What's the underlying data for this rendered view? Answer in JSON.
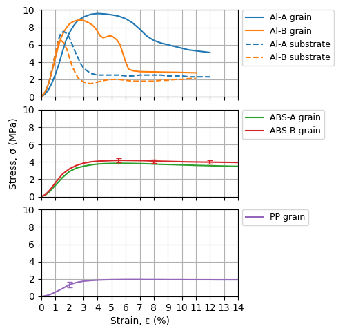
{
  "chart_data": [
    {
      "type": "line",
      "series": [
        {
          "name": "Al-A grain",
          "color": "#1f77b4",
          "line_style": "solid",
          "x": [
            0,
            0.25,
            0.5,
            0.75,
            1.0,
            1.25,
            1.5,
            1.75,
            2.0,
            2.3,
            2.6,
            3.0,
            3.5,
            4.0,
            4.5,
            5.0,
            5.5,
            6.0,
            6.5,
            7.0,
            7.5,
            8.0,
            8.5,
            9.0,
            9.5,
            10.0,
            10.5,
            11.0,
            11.5,
            12.0
          ],
          "values": [
            0,
            0.3,
            0.8,
            1.6,
            2.6,
            3.8,
            5.2,
            6.5,
            7.4,
            8.2,
            8.8,
            9.2,
            9.5,
            9.6,
            9.55,
            9.45,
            9.3,
            9.0,
            8.5,
            7.8,
            7.0,
            6.5,
            6.2,
            6.0,
            5.8,
            5.6,
            5.4,
            5.3,
            5.2,
            5.1
          ]
        },
        {
          "name": "Al-B grain",
          "color": "#ff7f0e",
          "line_style": "solid",
          "x": [
            0,
            0.2,
            0.4,
            0.6,
            0.8,
            1.0,
            1.2,
            1.4,
            1.6,
            1.8,
            2.0,
            2.2,
            2.4,
            2.6,
            2.8,
            3.0,
            3.2,
            3.4,
            3.6,
            3.8,
            4.0,
            4.2,
            4.4,
            4.6,
            4.8,
            5.0,
            5.2,
            5.4,
            5.6,
            5.8,
            6.0,
            6.1,
            6.2,
            6.5,
            7.0,
            7.5,
            8.0,
            8.5,
            9.0,
            9.5,
            10.0,
            10.5,
            11.0
          ],
          "values": [
            0,
            0.4,
            1.0,
            2.0,
            3.2,
            4.5,
            5.8,
            6.8,
            7.5,
            8.0,
            8.4,
            8.6,
            8.75,
            8.82,
            8.85,
            8.8,
            8.65,
            8.5,
            8.3,
            8.0,
            7.5,
            7.0,
            6.8,
            6.9,
            7.0,
            7.0,
            6.8,
            6.5,
            6.0,
            5.0,
            4.0,
            3.6,
            3.2,
            3.0,
            2.9,
            2.88,
            2.87,
            2.85,
            2.83,
            2.82,
            2.8,
            2.78,
            2.76
          ]
        },
        {
          "name": "Al-A substrate",
          "color": "#1f77b4",
          "line_style": "dashed",
          "x": [
            0,
            0.2,
            0.4,
            0.6,
            0.8,
            1.0,
            1.2,
            1.4,
            1.6,
            1.8,
            2.0,
            2.2,
            2.4,
            2.6,
            2.8,
            3.0,
            3.5,
            4.0,
            4.5,
            5.0,
            5.5,
            6.0,
            6.5,
            7.0,
            7.5,
            8.0,
            8.5,
            9.0,
            9.5,
            10.0,
            10.5,
            11.0,
            11.5,
            12.0
          ],
          "values": [
            0,
            0.4,
            1.0,
            2.0,
            3.5,
            5.0,
            6.5,
            7.4,
            7.5,
            7.3,
            6.8,
            6.0,
            5.2,
            4.5,
            3.8,
            3.3,
            2.7,
            2.5,
            2.5,
            2.5,
            2.5,
            2.4,
            2.4,
            2.5,
            2.5,
            2.5,
            2.5,
            2.4,
            2.4,
            2.4,
            2.3,
            2.3,
            2.3,
            2.3
          ]
        },
        {
          "name": "Al-B substrate",
          "color": "#ff7f0e",
          "line_style": "dashed",
          "x": [
            0,
            0.2,
            0.4,
            0.6,
            0.8,
            1.0,
            1.2,
            1.4,
            1.6,
            1.8,
            2.0,
            2.2,
            2.4,
            2.6,
            2.8,
            3.0,
            3.5,
            4.0,
            4.5,
            5.0,
            5.5,
            6.0,
            6.5,
            7.0,
            7.5,
            8.0,
            8.5,
            9.0,
            9.5,
            10.0,
            10.5,
            11.0
          ],
          "values": [
            0,
            0.4,
            1.0,
            2.0,
            3.5,
            5.0,
            6.3,
            6.5,
            6.2,
            5.5,
            4.5,
            3.5,
            2.8,
            2.2,
            1.9,
            1.7,
            1.5,
            1.7,
            1.9,
            2.0,
            2.0,
            1.9,
            1.8,
            1.8,
            1.8,
            1.8,
            1.9,
            1.9,
            2.0,
            2.0,
            2.1,
            2.1
          ]
        }
      ],
      "xlim": [
        0,
        14
      ],
      "ylim": [
        0,
        10
      ],
      "xticks": [
        0,
        1,
        2,
        3,
        4,
        5,
        6,
        7,
        8,
        9,
        10,
        11,
        12,
        13,
        14
      ],
      "yticks": [
        0,
        2,
        4,
        6,
        8,
        10
      ],
      "grid": true,
      "legend": "right",
      "tick_labels": "y"
    },
    {
      "type": "line",
      "ylabel": "Stress, σ (MPa)",
      "series": [
        {
          "name": "ABS-A grain",
          "color": "#2ca02c",
          "line_style": "solid",
          "x": [
            0,
            0.3,
            0.6,
            1.0,
            1.5,
            2.0,
            2.5,
            3.0,
            3.5,
            4.0,
            4.5,
            5.0,
            5.5,
            6.0,
            6.5,
            7.0,
            7.5,
            8.0,
            8.5,
            9.0,
            9.5,
            10.0,
            10.5,
            11.0,
            11.5,
            12.0,
            12.5,
            13.0,
            13.5,
            14.0
          ],
          "values": [
            0,
            0.2,
            0.6,
            1.3,
            2.2,
            2.9,
            3.3,
            3.5,
            3.65,
            3.75,
            3.8,
            3.82,
            3.83,
            3.83,
            3.82,
            3.8,
            3.78,
            3.75,
            3.72,
            3.7,
            3.68,
            3.65,
            3.63,
            3.6,
            3.58,
            3.56,
            3.54,
            3.52,
            3.5,
            3.49
          ]
        },
        {
          "name": "ABS-B grain",
          "color": "#d62728",
          "line_style": "solid",
          "x": [
            0,
            0.3,
            0.6,
            1.0,
            1.5,
            2.0,
            2.5,
            3.0,
            3.5,
            4.0,
            4.5,
            5.0,
            5.5,
            6.0,
            6.5,
            7.0,
            7.5,
            8.0,
            8.5,
            9.0,
            9.5,
            10.0,
            10.5,
            11.0,
            11.5,
            12.0,
            12.5,
            13.0,
            13.5,
            14.0
          ],
          "values": [
            0,
            0.25,
            0.75,
            1.6,
            2.6,
            3.2,
            3.6,
            3.85,
            4.0,
            4.08,
            4.12,
            4.15,
            4.17,
            4.17,
            4.16,
            4.15,
            4.13,
            4.1,
            4.08,
            4.06,
            4.04,
            4.02,
            4.0,
            3.99,
            3.98,
            3.97,
            3.96,
            3.95,
            3.94,
            3.93
          ],
          "error_bars": {
            "x": [
              5.5,
              8.0,
              12.0
            ],
            "values": [
              4.17,
              4.08,
              3.97
            ],
            "errors": [
              0.22,
              0.18,
              0.18
            ]
          }
        }
      ],
      "xlim": [
        0,
        14
      ],
      "ylim": [
        0,
        10
      ],
      "xticks": [
        0,
        1,
        2,
        3,
        4,
        5,
        6,
        7,
        8,
        9,
        10,
        11,
        12,
        13,
        14
      ],
      "yticks": [
        0,
        2,
        4,
        6,
        8,
        10
      ],
      "grid": true,
      "legend": "right",
      "tick_labels": "y"
    },
    {
      "type": "line",
      "xlabel": "Strain, ε (%)",
      "series": [
        {
          "name": "PP grain",
          "color": "#9467bd",
          "line_style": "solid",
          "x": [
            0,
            0.3,
            0.6,
            1.0,
            1.5,
            2.0,
            2.5,
            3.0,
            3.5,
            4.0,
            4.5,
            5.0,
            5.5,
            6.0,
            6.5,
            7.0,
            7.5,
            8.0,
            8.5,
            9.0,
            9.5,
            10.0,
            10.5,
            11.0,
            11.5,
            12.0,
            12.5,
            13.0,
            13.5,
            14.0
          ],
          "values": [
            0,
            0.08,
            0.2,
            0.5,
            0.9,
            1.35,
            1.6,
            1.75,
            1.82,
            1.87,
            1.9,
            1.92,
            1.93,
            1.94,
            1.94,
            1.94,
            1.93,
            1.93,
            1.93,
            1.92,
            1.92,
            1.92,
            1.91,
            1.91,
            1.91,
            1.91,
            1.9,
            1.9,
            1.9,
            1.9
          ],
          "error_bars": {
            "x": [
              2.0
            ],
            "values": [
              1.35
            ],
            "errors": [
              0.3
            ]
          }
        }
      ],
      "xlim": [
        0,
        14
      ],
      "ylim": [
        0,
        10
      ],
      "xticks": [
        0,
        1,
        2,
        3,
        4,
        5,
        6,
        7,
        8,
        9,
        10,
        11,
        12,
        13,
        14
      ],
      "yticks": [
        0,
        2,
        4,
        6,
        8,
        10
      ],
      "grid": true,
      "legend": "right"
    }
  ]
}
